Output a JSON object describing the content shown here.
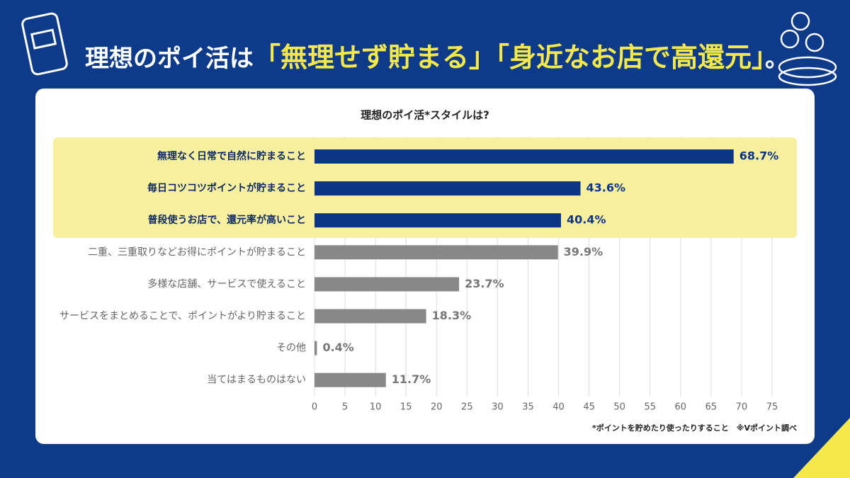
{
  "header": {
    "title_parts": [
      "理想のポイ活は",
      "「無理せず貯まる」「身近なお店で高還元」",
      "。"
    ]
  },
  "chart_data": {
    "type": "bar",
    "orientation": "horizontal",
    "title": "理想のポイ活*スタイルは?",
    "categories": [
      "無理なく日常で自然に貯まること",
      "毎日コツコツポイントが貯まること",
      "普段使うお店で、還元率が高いこと",
      "二重、三重取りなどお得にポイントが貯まること",
      "多様な店舗、サービスで使えること",
      "サービスをまとめることで、ポイントがより貯まること",
      "その他",
      "当てはまるものはない"
    ],
    "values": [
      68.7,
      43.6,
      40.4,
      39.9,
      23.7,
      18.3,
      0.4,
      11.7
    ],
    "value_labels": [
      "68.7%",
      "43.6%",
      "40.4%",
      "39.9%",
      "23.7%",
      "18.3%",
      "0.4%",
      "11.7%"
    ],
    "colors": [
      "#0d3585",
      "#0d3585",
      "#0d3585",
      "#888888",
      "#888888",
      "#888888",
      "#888888",
      "#888888"
    ],
    "highlight_color": "#f8f09e",
    "xlim": [
      0,
      75
    ],
    "xticks": [
      0,
      5,
      10,
      15,
      20,
      25,
      30,
      35,
      40,
      45,
      50,
      55,
      60,
      65,
      70,
      75
    ],
    "grid": true,
    "footnote": "*ポイントを貯めたり使ったりすること　※Vポイント調べ"
  }
}
